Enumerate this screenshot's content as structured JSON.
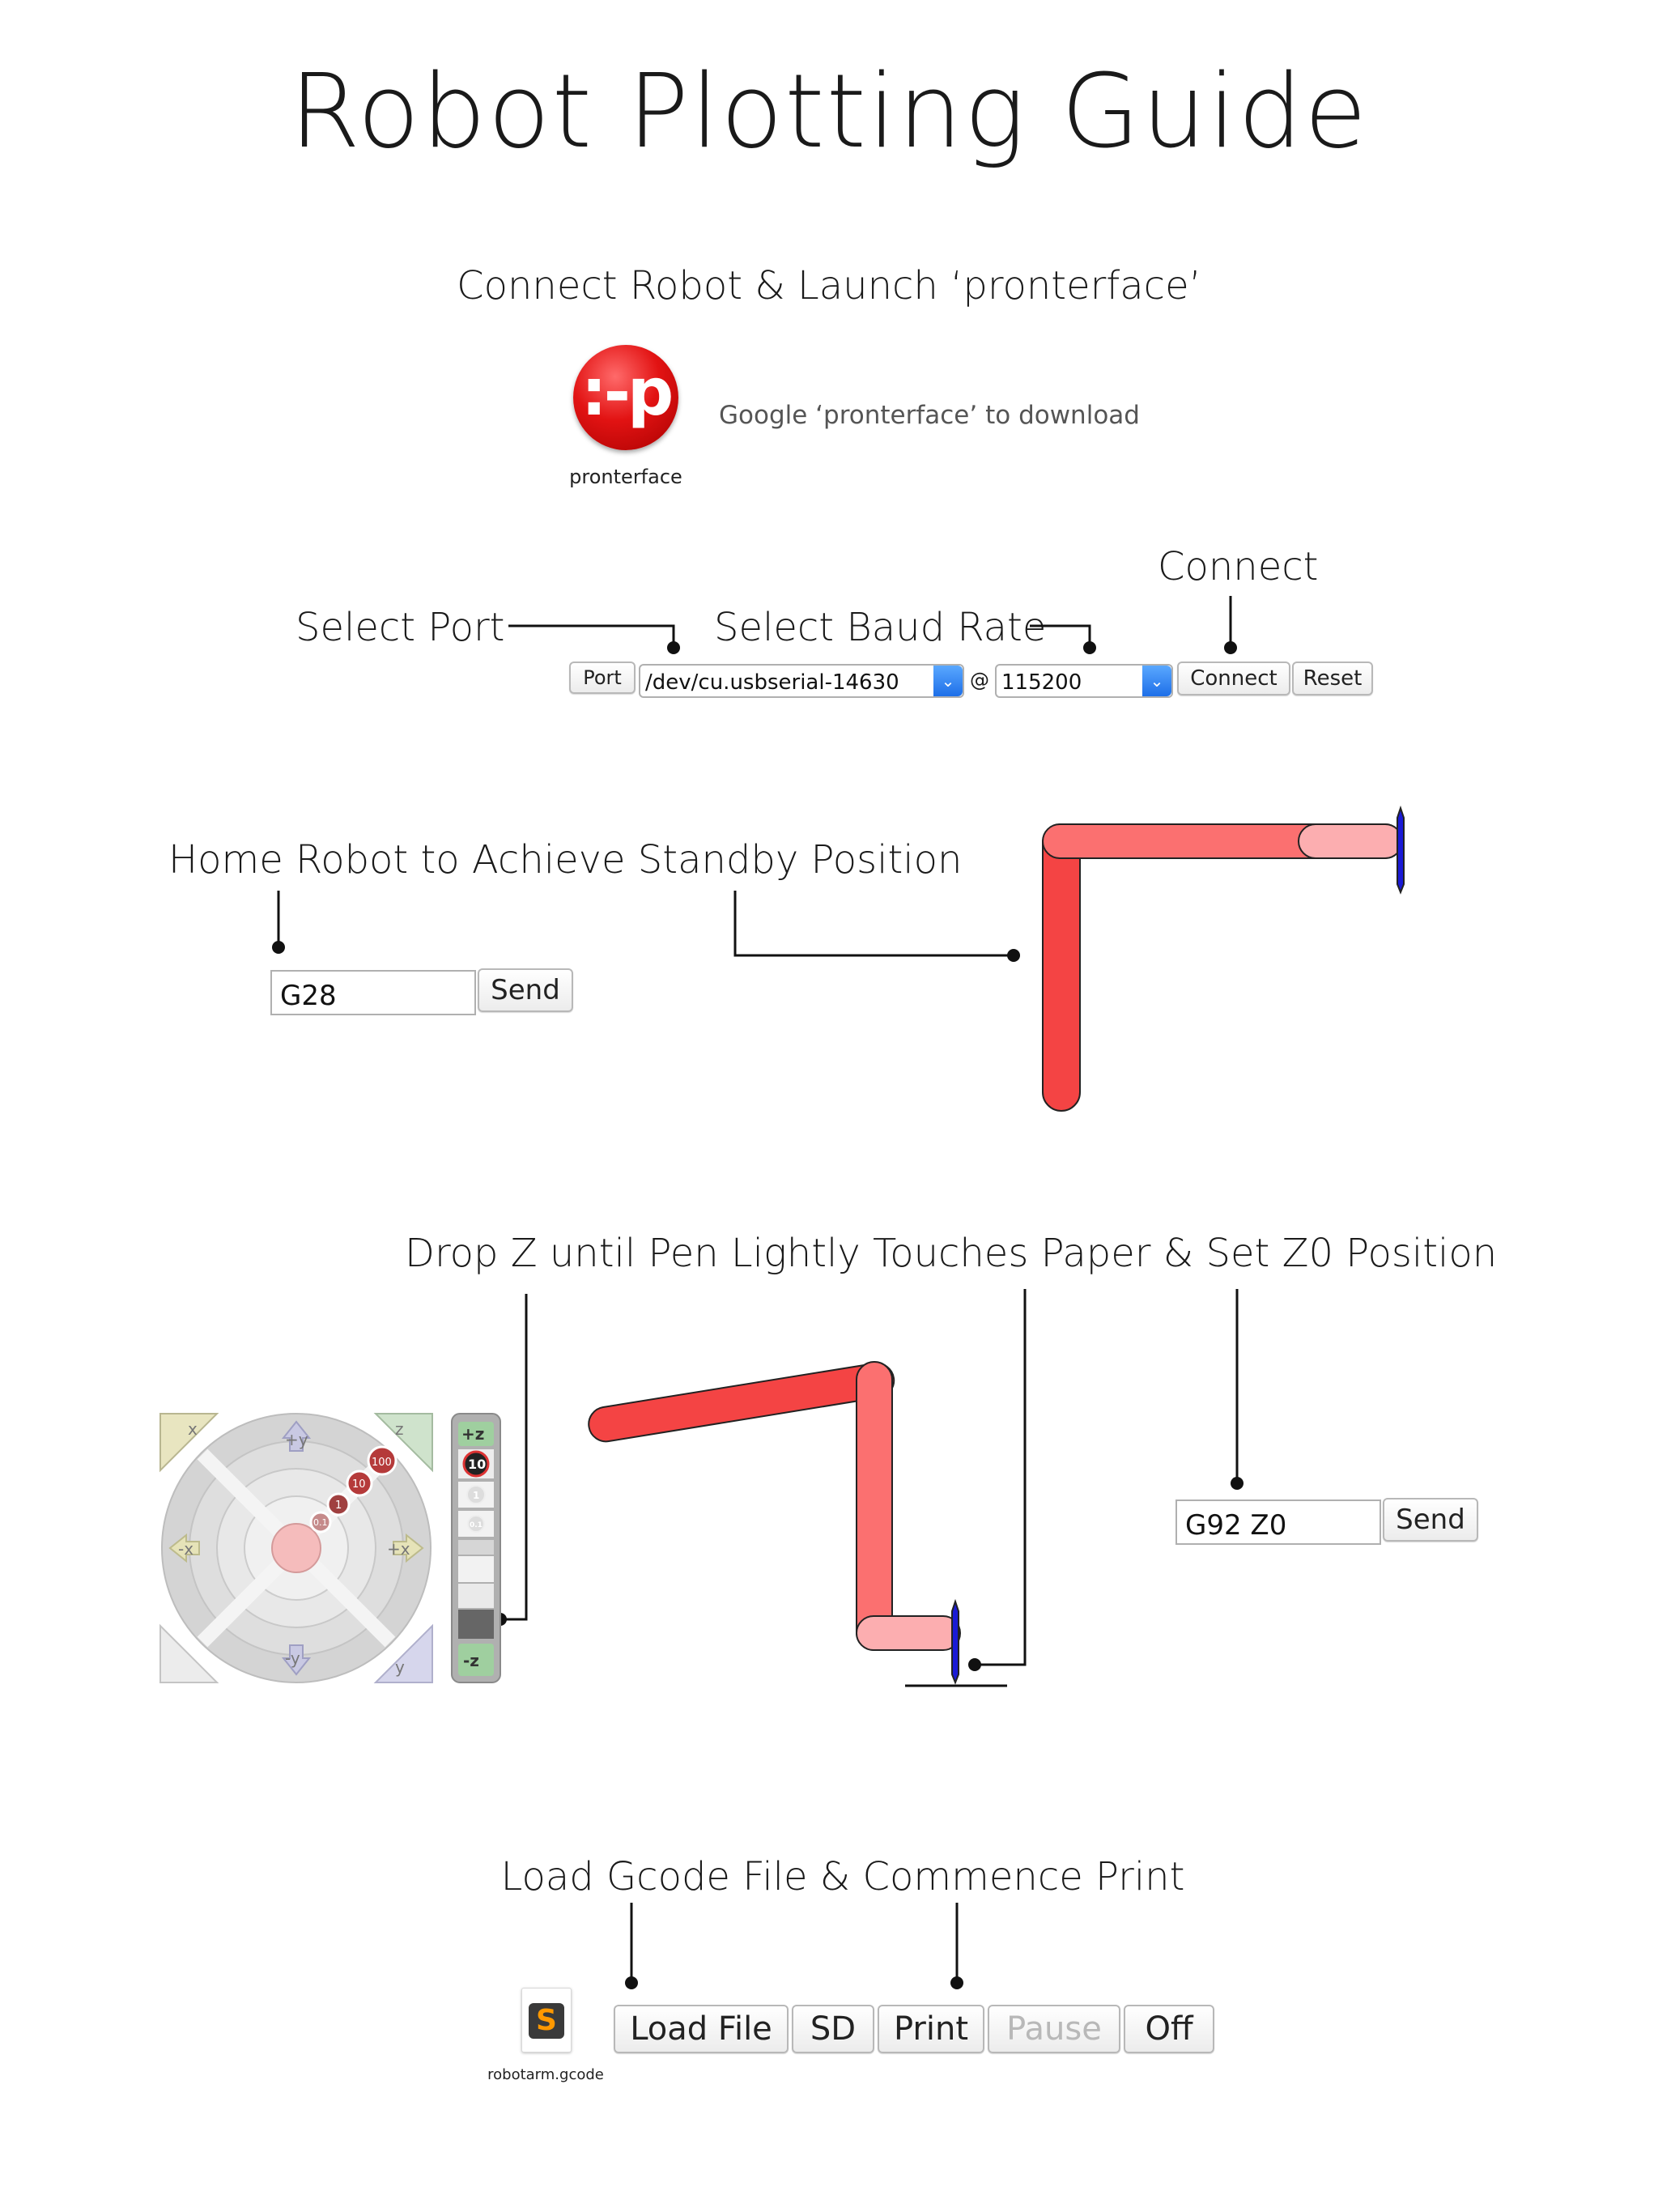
{
  "title": "Robot Plotting Guide",
  "step1": {
    "heading": "Connect Robot & Launch ‘pronterface’",
    "app_icon_text": ":-p",
    "app_name": "pronterface",
    "note": "Google ‘pronterface’ to download"
  },
  "step2": {
    "label_port": "Select Port",
    "label_baud": "Select Baud Rate",
    "label_connect": "Connect",
    "port_button": "Port",
    "port_value": "/dev/cu.usbserial-14630",
    "at_sign": "@",
    "baud_value": "115200",
    "connect_button": "Connect",
    "reset_button": "Reset",
    "colors": {
      "select_arrow": "#2b7cf0"
    }
  },
  "step3": {
    "heading": "Home Robot to Achieve Standby Position",
    "command_value": "G28",
    "send_button": "Send"
  },
  "step4": {
    "heading": "Drop Z until Pen Lightly Touches Paper & Set Z0 Position",
    "command_value": "G92 Z0",
    "send_button": "Send",
    "jog": {
      "xy_labels": [
        "+y",
        "-y",
        "+x",
        "-x"
      ],
      "corner_labels": [
        "x",
        "z",
        "y"
      ],
      "step_labels": [
        "100",
        "10",
        "1",
        "0.1"
      ],
      "z_labels": [
        "+z",
        "-z"
      ],
      "z_steps": [
        "10",
        "1",
        "0.1"
      ]
    }
  },
  "step5": {
    "heading": "Load Gcode File & Commence Print",
    "file_name": "robotarm.gcode",
    "buttons": {
      "load": "Load File",
      "sd": "SD",
      "print": "Print",
      "pause": "Pause",
      "off": "Off"
    }
  },
  "colors": {
    "arm_dark": "#f44444",
    "arm_mid": "#fb7070",
    "arm_light": "#fcaeb0",
    "pen": "#1a1ad6",
    "icon_red": "#e21313"
  }
}
